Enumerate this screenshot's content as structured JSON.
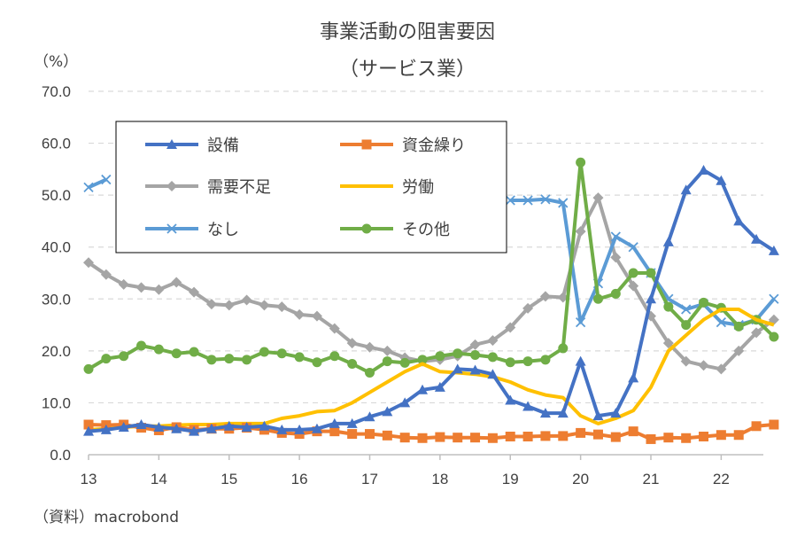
{
  "chart_data": {
    "type": "line",
    "title": "事業活動の阻害要因",
    "subtitle": "（サービス業）",
    "ylabel": "（%）",
    "source": "（資料）macrobond",
    "ylim": [
      0,
      70
    ],
    "yticks": [
      "0.0",
      "10.0",
      "20.0",
      "30.0",
      "40.0",
      "50.0",
      "60.0",
      "70.0"
    ],
    "xlim": [
      13,
      22.6
    ],
    "xticks": [
      "13",
      "14",
      "15",
      "16",
      "17",
      "18",
      "19",
      "20",
      "21",
      "22"
    ],
    "gridlines": true,
    "legend_position": "top-left inside plot",
    "series": [
      {
        "name": "設備",
        "color": "#4472C4",
        "marker": "triangle",
        "values": [
          4.5,
          4.8,
          5.3,
          5.8,
          5.3,
          5.0,
          4.5,
          5.0,
          5.5,
          5.3,
          5.5,
          4.8,
          4.8,
          5.0,
          6.0,
          6.0,
          7.3,
          8.3,
          10.0,
          12.5,
          13.0,
          16.5,
          16.3,
          15.5,
          10.5,
          9.3,
          8.0,
          8.0,
          18.0,
          7.5,
          8.0,
          14.8,
          30.0,
          41.0,
          51.0,
          54.8,
          52.8,
          45.0,
          41.5,
          39.3
        ]
      },
      {
        "name": "資金繰り",
        "color": "#ED7D31",
        "marker": "square",
        "values": [
          5.8,
          5.7,
          5.8,
          5.2,
          4.7,
          5.3,
          4.8,
          5.0,
          5.0,
          5.2,
          4.8,
          4.2,
          4.0,
          4.5,
          4.5,
          4.0,
          4.0,
          3.7,
          3.3,
          3.2,
          3.4,
          3.3,
          3.3,
          3.2,
          3.5,
          3.5,
          3.6,
          3.6,
          4.2,
          3.9,
          3.4,
          4.5,
          3.0,
          3.3,
          3.2,
          3.5,
          3.8,
          3.8,
          5.5,
          5.8
        ]
      },
      {
        "name": "需要不足",
        "color": "#A5A5A5",
        "marker": "diamond",
        "values": [
          37.0,
          34.7,
          32.8,
          32.2,
          31.8,
          33.2,
          31.3,
          29.0,
          28.8,
          29.8,
          28.8,
          28.5,
          27.0,
          26.7,
          24.3,
          21.5,
          20.7,
          20.0,
          18.7,
          18.0,
          18.3,
          19.0,
          21.2,
          22.0,
          24.5,
          28.2,
          30.5,
          30.3,
          43.0,
          49.5,
          38.0,
          32.5,
          26.7,
          21.5,
          18.0,
          17.2,
          16.5,
          20.0,
          23.5,
          26.0
        ]
      },
      {
        "name": "労働",
        "color": "#FFC000",
        "marker": "dash",
        "values": [
          4.8,
          5.0,
          5.3,
          5.5,
          5.5,
          5.7,
          5.8,
          5.8,
          6.0,
          6.0,
          6.0,
          7.0,
          7.5,
          8.3,
          8.5,
          10.0,
          12.0,
          14.0,
          16.0,
          17.5,
          16.0,
          15.8,
          15.5,
          15.0,
          14.0,
          12.5,
          11.5,
          11.0,
          7.5,
          6.0,
          7.0,
          8.5,
          13.0,
          20.0,
          23.0,
          26.0,
          28.0,
          28.0,
          26.0,
          25.0
        ]
      },
      {
        "name": "なし",
        "color": "#5B9BD5",
        "marker": "x",
        "values": [
          51.5,
          53.0,
          null,
          null,
          null,
          null,
          null,
          null,
          null,
          null,
          null,
          null,
          null,
          null,
          null,
          null,
          null,
          null,
          null,
          null,
          null,
          null,
          null,
          null,
          49.0,
          49.0,
          49.2,
          48.5,
          25.5,
          33.0,
          42.0,
          40.0,
          35.0,
          30.0,
          28.0,
          29.0,
          25.5,
          25.0,
          26.0,
          30.0
        ]
      },
      {
        "name": "その他",
        "color": "#70AD47",
        "marker": "circle",
        "values": [
          16.5,
          18.5,
          19.0,
          21.0,
          20.3,
          19.5,
          19.8,
          18.3,
          18.5,
          18.3,
          19.8,
          19.5,
          18.8,
          17.8,
          19.0,
          17.5,
          15.8,
          18.0,
          17.7,
          18.3,
          19.0,
          19.5,
          19.2,
          18.8,
          17.8,
          18.0,
          18.3,
          20.5,
          56.3,
          30.0,
          31.0,
          35.0,
          35.0,
          28.5,
          25.0,
          29.3,
          28.3,
          24.7,
          26.0,
          22.7
        ]
      }
    ]
  }
}
